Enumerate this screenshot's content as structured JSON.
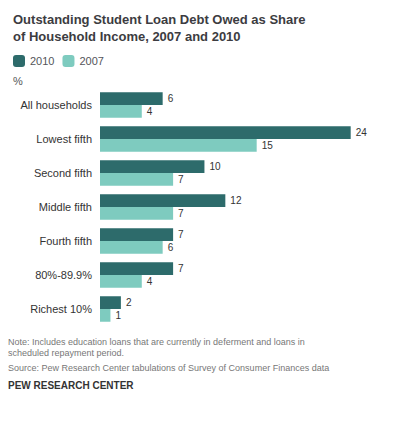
{
  "chart_data": {
    "type": "bar",
    "title": "Outstanding Student Loan Debt Owed as Share\nof Household Income, 2007 and 2010",
    "subtitle": "%",
    "orientation": "horizontal",
    "categories": [
      "All households",
      "Lowest fifth",
      "Second fifth",
      "Middle fifth",
      "Fourth fifth",
      "80%-89.9%",
      "Richest 10%"
    ],
    "series": [
      {
        "name": "2010",
        "color": "#2d6b6b",
        "values": [
          6,
          24,
          10,
          12,
          7,
          7,
          2
        ]
      },
      {
        "name": "2007",
        "color": "#7ecbbf",
        "values": [
          4,
          15,
          7,
          7,
          6,
          4,
          1
        ]
      }
    ],
    "xlim": [
      0,
      27
    ],
    "data_labels": true,
    "tick_labels": "y",
    "grid": false,
    "legend": "upper left",
    "annotations": [
      "Note: Includes education loans that are currently in deferment and loans in\nscheduled repayment period.",
      "Source: Pew Research Center tabulations of Survey of Consumer Finances data",
      "PEW RESEARCH CENTER"
    ]
  }
}
